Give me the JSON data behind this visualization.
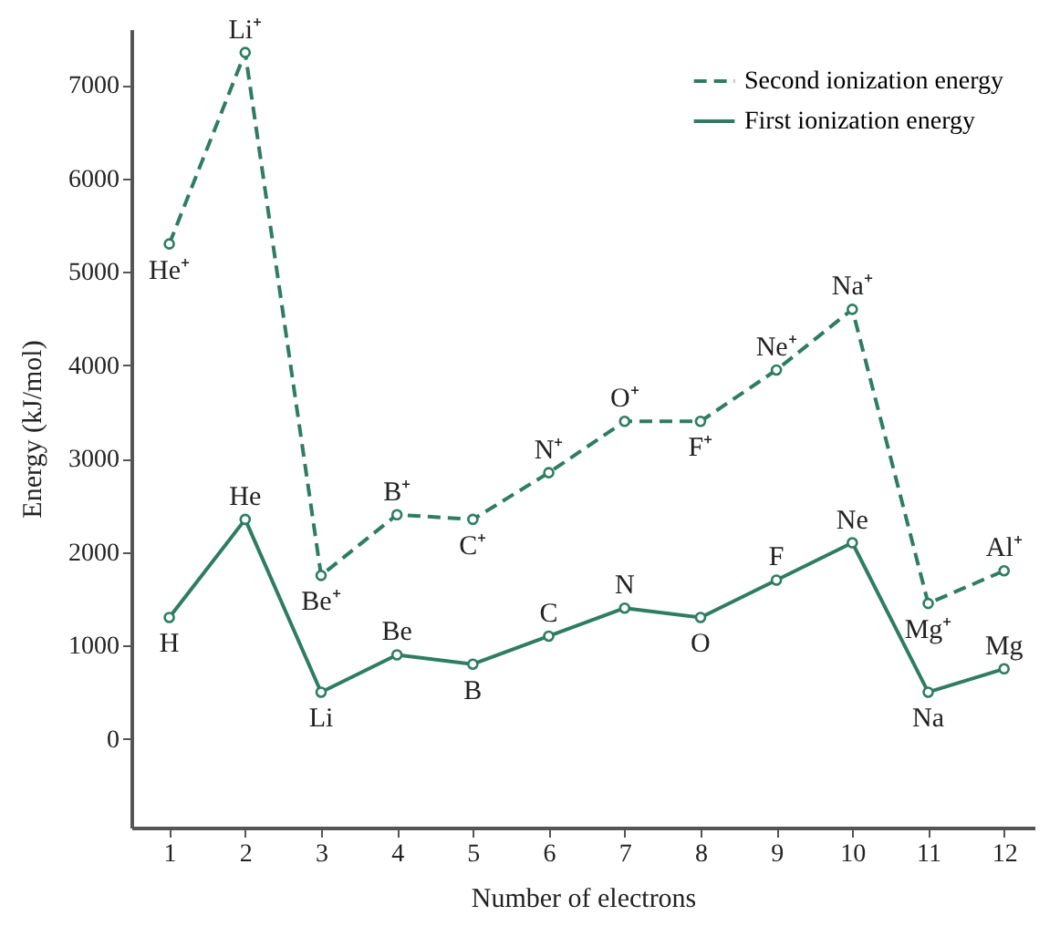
{
  "chart_data": {
    "type": "line",
    "xlabel": "Number of electrons",
    "ylabel": "Energy (kJ/mol)",
    "x": [
      1,
      2,
      3,
      4,
      5,
      6,
      7,
      8,
      9,
      10,
      11,
      12
    ],
    "series": [
      {
        "name": "Second ionization energy",
        "color": "#2e7d62",
        "line_style": "dashed",
        "values": [
          5300,
          7350,
          1750,
          2400,
          2350,
          2850,
          3400,
          3400,
          3950,
          4600,
          1450,
          1800
        ]
      },
      {
        "name": "First ionization energy",
        "color": "#2e7d62",
        "line_style": "solid",
        "values": [
          1300,
          2350,
          500,
          900,
          800,
          1100,
          1400,
          1300,
          1700,
          2100,
          500,
          750
        ]
      }
    ],
    "xlim": [
      0.5,
      12.4
    ],
    "xticks": [
      1,
      2,
      3,
      4,
      5,
      6,
      7,
      8,
      9,
      10,
      11,
      12
    ],
    "ylim": [
      -950,
      7600
    ],
    "yticks": [
      0,
      1000,
      2000,
      3000,
      4000,
      5000,
      6000,
      7000
    ],
    "grid": false,
    "legend": "top right",
    "marker": "circle",
    "annotations": [
      {
        "text": "He⁺",
        "x": 1,
        "y": 5300
      },
      {
        "text": "Li⁺",
        "x": 2,
        "y": 7350
      },
      {
        "text": "Be⁺",
        "x": 3,
        "y": 1750
      },
      {
        "text": "B⁺",
        "x": 4,
        "y": 2400
      },
      {
        "text": "C⁺",
        "x": 5,
        "y": 2350
      },
      {
        "text": "N⁺",
        "x": 6,
        "y": 2850
      },
      {
        "text": "O⁺",
        "x": 7,
        "y": 3400
      },
      {
        "text": "F⁺",
        "x": 8,
        "y": 3400
      },
      {
        "text": "Ne⁺",
        "x": 9,
        "y": 3950
      },
      {
        "text": "Na⁺",
        "x": 10,
        "y": 4600
      },
      {
        "text": "Mg⁺",
        "x": 11,
        "y": 1450
      },
      {
        "text": "Al⁺",
        "x": 12,
        "y": 1800
      },
      {
        "text": "H",
        "x": 1,
        "y": 1300
      },
      {
        "text": "He",
        "x": 2,
        "y": 2350
      },
      {
        "text": "Li",
        "x": 3,
        "y": 500
      },
      {
        "text": "Be",
        "x": 4,
        "y": 900
      },
      {
        "text": "B",
        "x": 5,
        "y": 800
      },
      {
        "text": "C",
        "x": 6,
        "y": 1100
      },
      {
        "text": "N",
        "x": 7,
        "y": 1400
      },
      {
        "text": "O",
        "x": 8,
        "y": 1300
      },
      {
        "text": "F",
        "x": 9,
        "y": 1700
      },
      {
        "text": "Ne",
        "x": 10,
        "y": 2100
      },
      {
        "text": "Na",
        "x": 11,
        "y": 500
      },
      {
        "text": "Mg",
        "x": 12,
        "y": 750
      }
    ]
  }
}
